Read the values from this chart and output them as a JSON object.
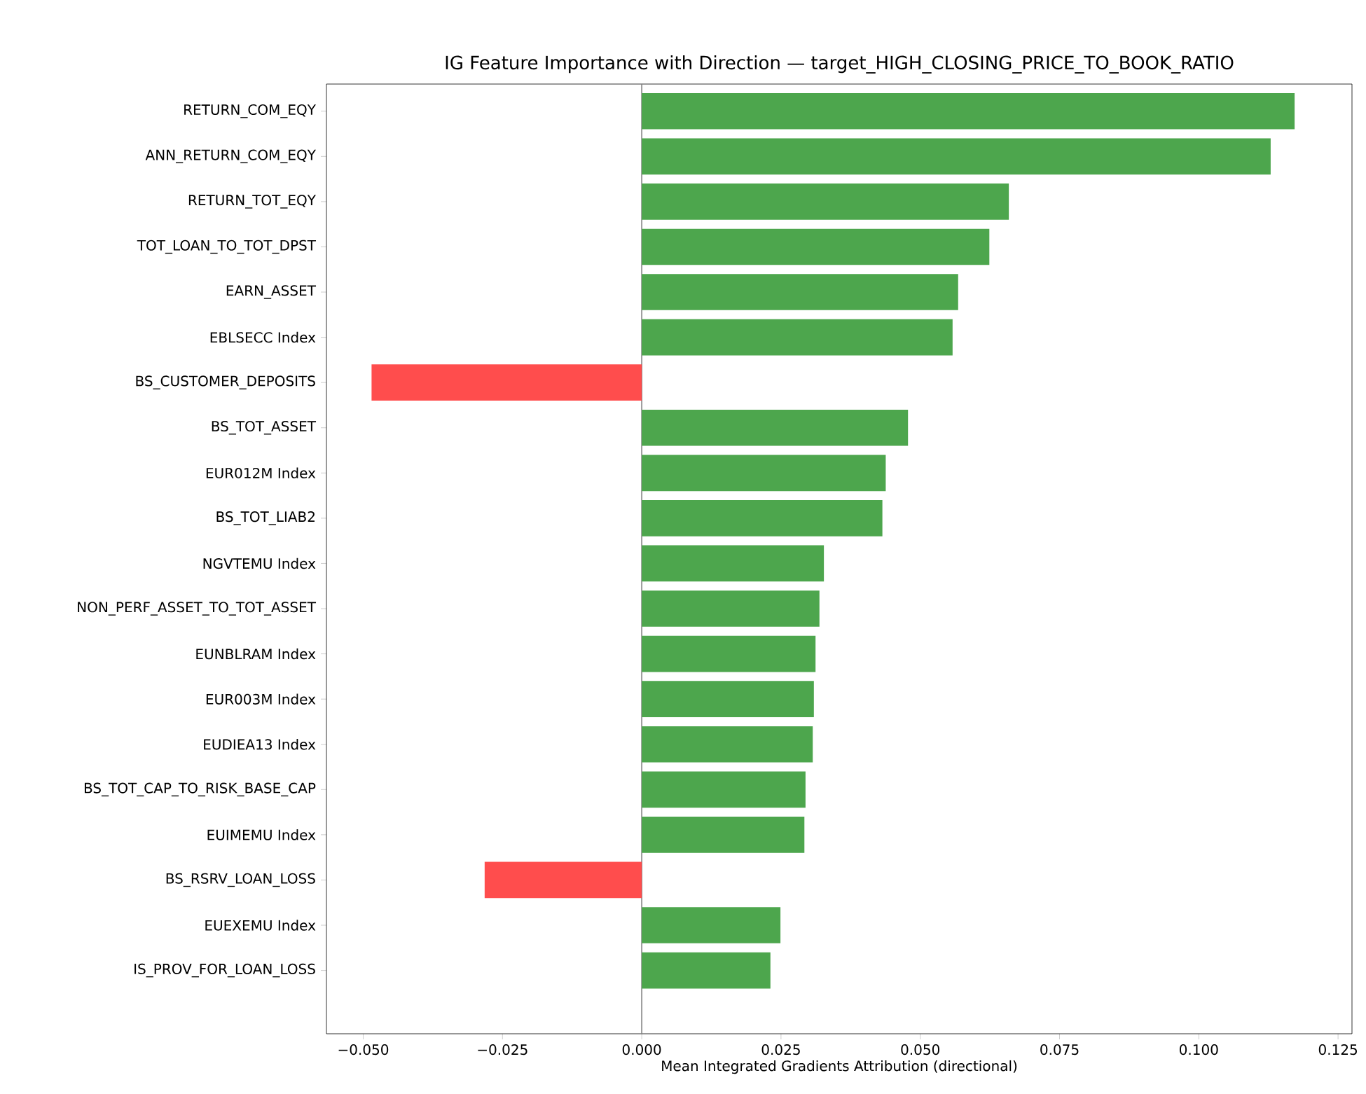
{
  "chart_data": {
    "type": "bar",
    "orientation": "horizontal",
    "title": "IG Feature Importance with Direction — target_HIGH_CLOSING_PRICE_TO_BOOK_RATIO",
    "xlabel": "Mean Integrated Gradients Attribution (directional)",
    "categories": [
      "RETURN_COM_EQY",
      "ANN_RETURN_COM_EQY",
      "RETURN_TOT_EQY",
      "TOT_LOAN_TO_TOT_DPST",
      "EARN_ASSET",
      "EBLSECC Index",
      "BS_CUSTOMER_DEPOSITS",
      "BS_TOT_ASSET",
      "EUR012M Index",
      "BS_TOT_LIAB2",
      "NGVTEMU Index",
      "NON_PERF_ASSET_TO_TOT_ASSET",
      "EUNBLRAM Index",
      "EUR003M Index",
      "EUDIEA13 Index",
      "BS_TOT_CAP_TO_RISK_BASE_CAP",
      "EUIMEMU Index",
      "BS_RSRV_LOAN_LOSS",
      "EUEXEMU Index",
      "IS_PROV_FOR_LOAN_LOSS"
    ],
    "values": [
      0.1172,
      0.1129,
      0.0659,
      0.0624,
      0.0568,
      0.0558,
      -0.0485,
      0.0478,
      0.0438,
      0.0432,
      0.0327,
      0.0319,
      0.0312,
      0.0309,
      0.0307,
      0.0294,
      0.0292,
      -0.0282,
      0.0249,
      0.0231
    ],
    "colors": [
      "#4da64d",
      "#4da64d",
      "#4da64d",
      "#4da64d",
      "#4da64d",
      "#4da64d",
      "#ff4d4d",
      "#4da64d",
      "#4da64d",
      "#4da64d",
      "#4da64d",
      "#4da64d",
      "#4da64d",
      "#4da64d",
      "#4da64d",
      "#4da64d",
      "#4da64d",
      "#ff4d4d",
      "#4da64d",
      "#4da64d"
    ],
    "xlim": [
      -0.0566,
      0.1275
    ],
    "xticks": [
      {
        "value": -0.05,
        "label": "−0.050"
      },
      {
        "value": -0.025,
        "label": "−0.025"
      },
      {
        "value": 0,
        "label": "0.000"
      },
      {
        "value": 0.025,
        "label": "0.025"
      },
      {
        "value": 0.05,
        "label": "0.050"
      },
      {
        "value": 0.075,
        "label": "0.075"
      },
      {
        "value": 0.1,
        "label": "0.100"
      },
      {
        "value": 0.125,
        "label": "0.125"
      }
    ],
    "ref_lines": [
      {
        "axis": "x",
        "value": 0,
        "color": "#808080"
      }
    ],
    "grid": false
  }
}
